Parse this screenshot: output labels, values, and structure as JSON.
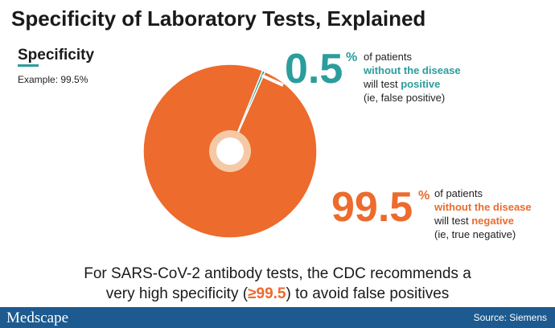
{
  "header": {
    "title": "Specificity of Laboratory Tests, Explained",
    "subtitle": "Specificity",
    "example": "Example: 99.5%"
  },
  "chart_data": {
    "type": "pie",
    "categories": [
      "without the disease will test positive (ie, false positive)",
      "without the disease will test negative (ie, true negative)"
    ],
    "values": [
      0.5,
      99.5
    ],
    "unit": "%",
    "colors": {
      "positive": "#2a9d9c",
      "negative": "#ec6b2d",
      "hole_ring": "#f5c9a6",
      "hole": "#ffffff"
    }
  },
  "labels": {
    "positive": {
      "value": "0.5",
      "unit": "%",
      "line1": "of patients",
      "line2": "without the disease",
      "line3_prefix": "will test ",
      "line3_highlight": "positive",
      "line4": "(ie, false positive)"
    },
    "negative": {
      "value": "99.5",
      "unit": "%",
      "line1": "of patients",
      "line2": "without the disease",
      "line3_prefix": "will test ",
      "line3_highlight": "negative",
      "line4": "(ie, true negative)"
    }
  },
  "note": {
    "line1": "For SARS-CoV-2 antibody tests, the CDC recommends a",
    "line2_prefix": "very high specificity (",
    "line2_highlight": "≥99.5",
    "line2_suffix": ") to avoid false positives"
  },
  "footer": {
    "logo": "Medscape",
    "source": "Source: Siemens"
  }
}
